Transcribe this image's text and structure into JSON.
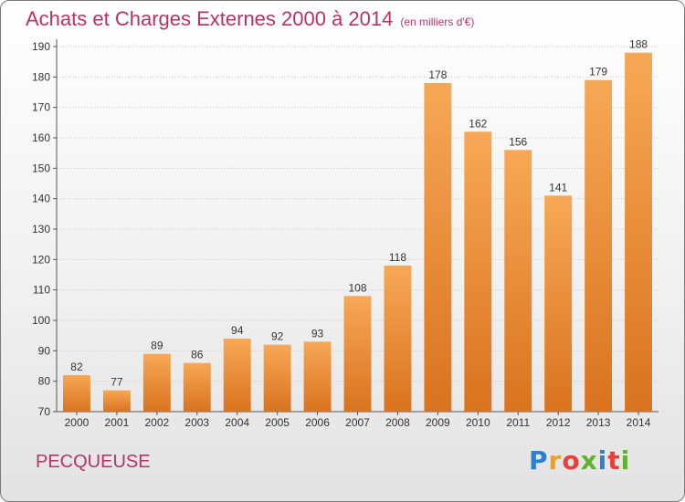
{
  "title": "Achats et Charges Externes 2000 à 2014",
  "subtitle": "(en milliers d'€)",
  "commune": "PECQUEUSE",
  "logo": {
    "text": "Proxiti",
    "letter_colors": [
      "#2f7fd1",
      "#f0a020",
      "#e8413a",
      "#5fb52a",
      "#2f7fd1",
      "#e8413a",
      "#5fb52a"
    ]
  },
  "colors": {
    "bar_top": "#f7a856",
    "bar_bottom": "#d9731f",
    "title": "#b8326a"
  },
  "chart_data": {
    "type": "bar",
    "title": "Achats et Charges Externes 2000 à 2014",
    "categories": [
      "2000",
      "2001",
      "2002",
      "2003",
      "2004",
      "2005",
      "2006",
      "2007",
      "2008",
      "2009",
      "2010",
      "2011",
      "2012",
      "2013",
      "2014"
    ],
    "values": [
      82,
      77,
      89,
      86,
      94,
      92,
      93,
      108,
      118,
      178,
      162,
      156,
      141,
      179,
      188
    ],
    "ylim": [
      70,
      190
    ],
    "yticks": [
      70,
      80,
      90,
      100,
      110,
      120,
      130,
      140,
      150,
      160,
      170,
      180,
      190
    ],
    "grid": true,
    "legend": "none"
  }
}
